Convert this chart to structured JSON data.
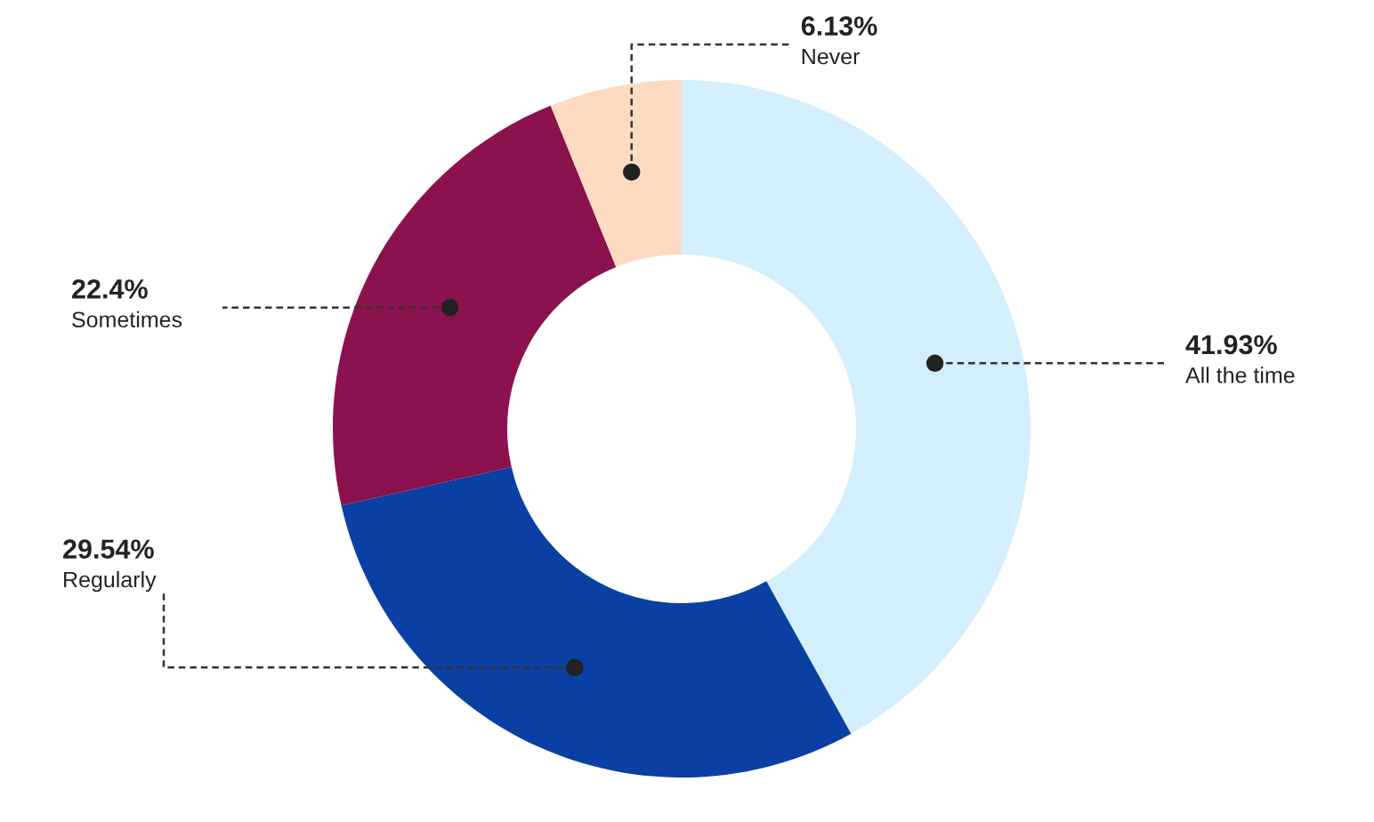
{
  "chart_data": {
    "type": "donut",
    "categories": [
      "All the time",
      "Regularly",
      "Sometimes",
      "Never"
    ],
    "values": [
      41.93,
      29.54,
      22.4,
      6.13
    ],
    "colors": [
      "#d3eefc",
      "#0a3fa3",
      "#8b124e",
      "#fddbc3"
    ],
    "value_labels": [
      "41.93%",
      "29.54%",
      "22.4%",
      "6.13%"
    ],
    "legend": false
  }
}
